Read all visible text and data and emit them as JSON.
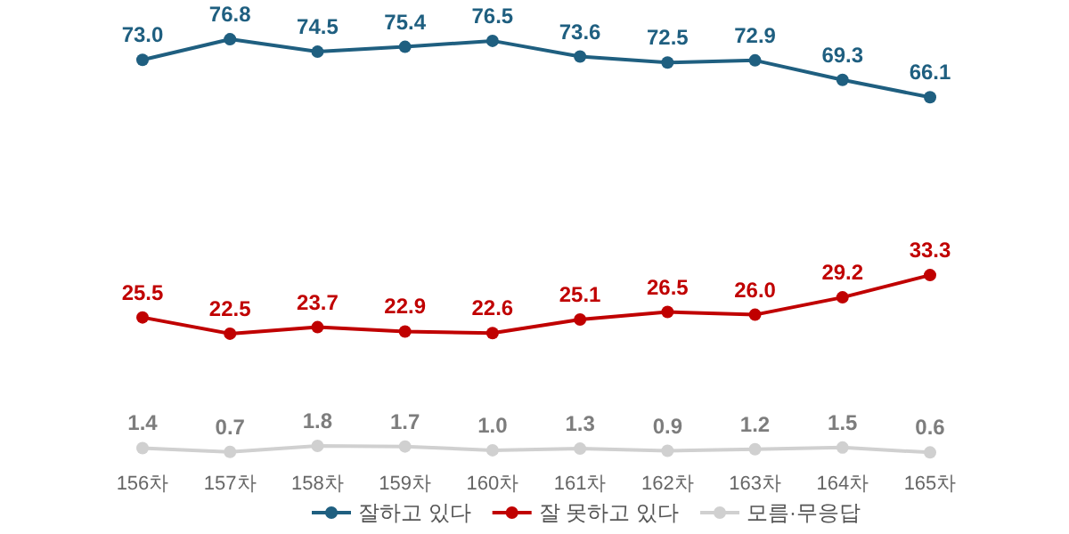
{
  "chart_data": {
    "type": "line",
    "categories": [
      "156차",
      "157차",
      "158차",
      "159차",
      "160차",
      "161차",
      "162차",
      "163차",
      "164차",
      "165차"
    ],
    "series": [
      {
        "name": "잘하고 있다",
        "color": "#1f5f80",
        "values": [
          73.0,
          76.8,
          74.5,
          75.4,
          76.5,
          73.6,
          72.5,
          72.9,
          69.3,
          66.1
        ],
        "value_labels": [
          "73.0",
          "76.8",
          "74.5",
          "75.4",
          "76.5",
          "73.6",
          "72.5",
          "72.9",
          "69.3",
          "66.1"
        ]
      },
      {
        "name": "잘 못하고 있다",
        "color": "#c00000",
        "values": [
          25.5,
          22.5,
          23.7,
          22.9,
          22.6,
          25.1,
          26.5,
          26.0,
          29.2,
          33.3
        ],
        "value_labels": [
          "25.5",
          "22.5",
          "23.7",
          "22.9",
          "22.6",
          "25.1",
          "26.5",
          "26.0",
          "29.2",
          "33.3"
        ]
      },
      {
        "name": "모름·무응답",
        "color": "#d0d0d0",
        "values": [
          1.4,
          0.7,
          1.8,
          1.7,
          1.0,
          1.3,
          0.9,
          1.2,
          1.5,
          0.6
        ],
        "value_labels": [
          "1.4",
          "0.7",
          "1.8",
          "1.7",
          "1.0",
          "1.3",
          "0.9",
          "1.2",
          "1.5",
          "0.6"
        ]
      }
    ],
    "legend": "bottom",
    "marker": "circle"
  }
}
